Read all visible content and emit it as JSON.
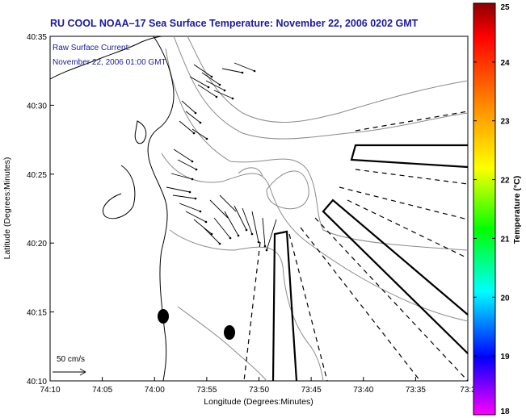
{
  "title": "RU COOL  NOAA–17  Sea Surface Temperature:  November 22, 2006 0202 GMT",
  "current_note": {
    "line1": "Raw Surface Current:",
    "line2": "November 22, 2006 01:00 GMT"
  },
  "scale_label": "50 cm/s",
  "axes": {
    "xlabel": "Longitude (Degrees:Minutes)",
    "ylabel": "Latitude (Degrees:Minutes)",
    "xticks": [
      "74:10",
      "74:05",
      "74:00",
      "73:55",
      "73:50",
      "73:45",
      "73:40",
      "73:35",
      "73:3"
    ],
    "yticks": [
      "40:35",
      "40:30",
      "40:25",
      "40:20",
      "40:15",
      "40:10"
    ]
  },
  "colorbar": {
    "label": "Temperature (°C)",
    "ticks": [
      "25",
      "24",
      "23",
      "22",
      "21",
      "20",
      "19",
      "18"
    ],
    "colors": [
      "#8b0000",
      "#ff0000",
      "#ff8c00",
      "#ffff00",
      "#00ff00",
      "#00ffff",
      "#0000ff",
      "#ff00ff"
    ]
  }
}
